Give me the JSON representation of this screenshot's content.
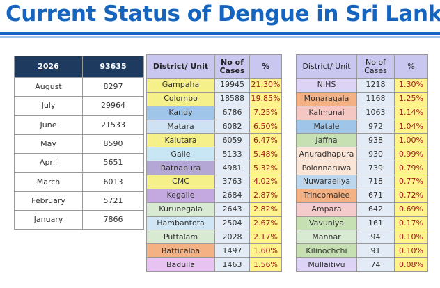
{
  "header": {
    "title": "Current Status of Dengue in Sri Lanka"
  },
  "year_table": {
    "header": [
      "2026",
      "93635"
    ],
    "rows": [
      [
        "August",
        "8297"
      ],
      [
        "July",
        "29964"
      ],
      [
        "June",
        "21533"
      ],
      [
        "May",
        "8590"
      ],
      [
        "April",
        "5651"
      ],
      [
        "March",
        "6013"
      ],
      [
        "February",
        "5721"
      ],
      [
        "January",
        "7866"
      ]
    ]
  },
  "district_tables": [
    {
      "header": [
        "District/ Unit",
        "No of Cases",
        "%"
      ],
      "rows": [
        [
          "Gampaha",
          "19945",
          "21.30%"
        ],
        [
          "Colombo",
          "18588",
          "19.85%"
        ],
        [
          "Kandy",
          "6786",
          "7.25%"
        ],
        [
          "Matara",
          "6082",
          "6.50%"
        ],
        [
          "Kalutara",
          "6059",
          "6.47%"
        ],
        [
          "Galle",
          "5133",
          "5.48%"
        ],
        [
          "Ratnapura",
          "4981",
          "5.32%"
        ],
        [
          "CMC",
          "3763",
          "4.02%"
        ],
        [
          "Kegalle",
          "2684",
          "2.87%"
        ],
        [
          "Kurunegala",
          "2643",
          "2.82%"
        ],
        [
          "Hambantota",
          "2504",
          "2.67%"
        ],
        [
          "Puttalam",
          "2028",
          "2.17%"
        ],
        [
          "Batticaloa",
          "1497",
          "1.60%"
        ],
        [
          "Badulla",
          "1463",
          "1.56%"
        ]
      ]
    },
    {
      "header": [
        "District/ Unit",
        "No of Cases",
        "%"
      ],
      "rows": [
        [
          "NIHS",
          "1218",
          "1.30%"
        ],
        [
          "Monaragala",
          "1168",
          "1.25%"
        ],
        [
          "Kalmunai",
          "1063",
          "1.14%"
        ],
        [
          "Matale",
          "972",
          "1.04%"
        ],
        [
          "Jaffna",
          "938",
          "1.00%"
        ],
        [
          "Anuradhapura",
          "930",
          "0.99%"
        ],
        [
          "Polonnaruwa",
          "739",
          "0.79%"
        ],
        [
          "Nuwaraeliya",
          "718",
          "0.77%"
        ],
        [
          "Trincomalee",
          "671",
          "0.72%"
        ],
        [
          "Ampara",
          "642",
          "0.69%"
        ],
        [
          "Vavuniya",
          "161",
          "0.17%"
        ],
        [
          "Mannar",
          "94",
          "0.10%"
        ],
        [
          "Kilinochchi",
          "91",
          "0.10%"
        ],
        [
          "Mullaitivu",
          "74",
          "0.08%"
        ]
      ]
    }
  ]
}
